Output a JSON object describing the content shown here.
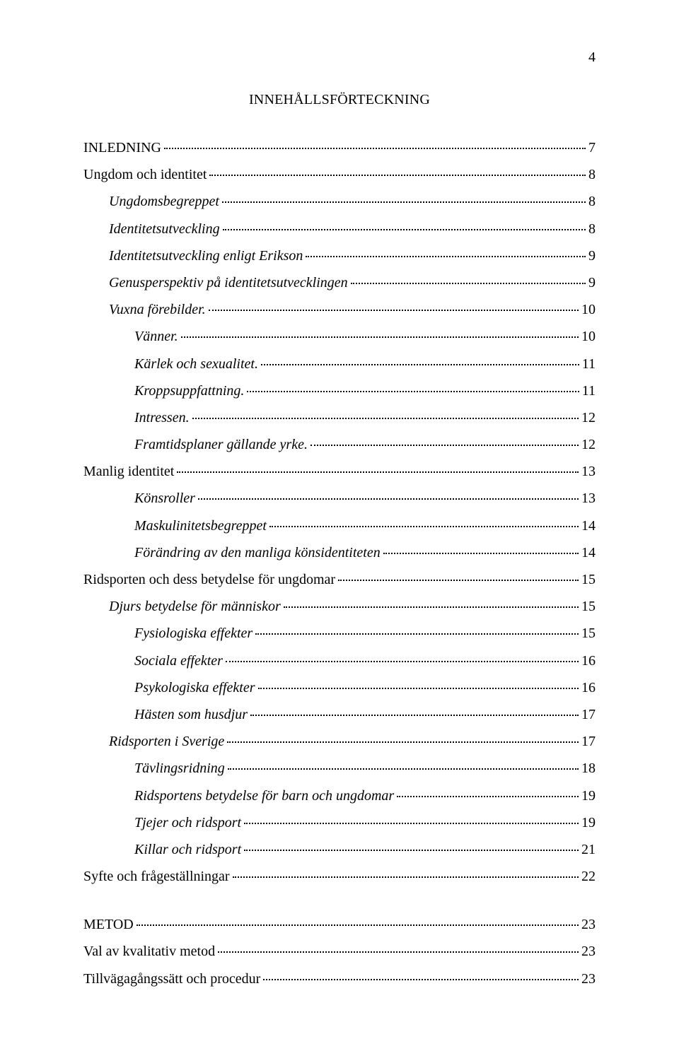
{
  "page_number": "4",
  "title": "INNEHÅLLSFÖRTECKNING",
  "toc": [
    {
      "label": "INLEDNING",
      "page": "7",
      "level": 0,
      "italic": false
    },
    {
      "label": "Ungdom och identitet",
      "page": "8",
      "level": 0,
      "italic": false
    },
    {
      "label": "Ungdomsbegreppet",
      "page": "8",
      "level": 1,
      "italic": true
    },
    {
      "label": "Identitetsutveckling",
      "page": "8",
      "level": 1,
      "italic": true
    },
    {
      "label": "Identitetsutveckling enligt Erikson",
      "page": "9",
      "level": 1,
      "italic": true
    },
    {
      "label": "Genusperspektiv på identitetsutvecklingen",
      "page": "9",
      "level": 1,
      "italic": true
    },
    {
      "label": "Vuxna förebilder.",
      "page": "10",
      "level": 1,
      "italic": true
    },
    {
      "label": "Vänner.",
      "page": "10",
      "level": 2,
      "italic": true
    },
    {
      "label": "Kärlek och sexualitet.",
      "page": "11",
      "level": 2,
      "italic": true
    },
    {
      "label": "Kroppsuppfattning.",
      "page": "11",
      "level": 2,
      "italic": true
    },
    {
      "label": "Intressen.",
      "page": "12",
      "level": 2,
      "italic": true
    },
    {
      "label": "Framtidsplaner gällande yrke.",
      "page": "12",
      "level": 2,
      "italic": true
    },
    {
      "label": "Manlig identitet",
      "page": "13",
      "level": 0,
      "italic": false
    },
    {
      "label": "Könsroller",
      "page": "13",
      "level": 2,
      "italic": true
    },
    {
      "label": "Maskulinitetsbegreppet",
      "page": "14",
      "level": 2,
      "italic": true
    },
    {
      "label": "Förändring av den manliga könsidentiteten",
      "page": "14",
      "level": 2,
      "italic": true
    },
    {
      "label": "Ridsporten och dess betydelse för ungdomar",
      "page": "15",
      "level": 0,
      "italic": false
    },
    {
      "label": "Djurs betydelse för människor",
      "page": "15",
      "level": 1,
      "italic": true
    },
    {
      "label": "Fysiologiska effekter",
      "page": "15",
      "level": 2,
      "italic": true
    },
    {
      "label": "Sociala effekter",
      "page": "16",
      "level": 2,
      "italic": true
    },
    {
      "label": "Psykologiska effekter",
      "page": "16",
      "level": 2,
      "italic": true
    },
    {
      "label": "Hästen som husdjur",
      "page": "17",
      "level": 2,
      "italic": true
    },
    {
      "label": "Ridsporten i Sverige",
      "page": "17",
      "level": 1,
      "italic": true
    },
    {
      "label": "Tävlingsridning",
      "page": "18",
      "level": 2,
      "italic": true
    },
    {
      "label": "Ridsportens betydelse för barn och ungdomar",
      "page": "19",
      "level": 2,
      "italic": true
    },
    {
      "label": "Tjejer och ridsport",
      "page": "19",
      "level": 2,
      "italic": true
    },
    {
      "label": "Killar och ridsport",
      "page": "21",
      "level": 2,
      "italic": true
    },
    {
      "label": "Syfte och frågeställningar",
      "page": "22",
      "level": 0,
      "italic": false
    }
  ],
  "toc2": [
    {
      "label": "METOD",
      "page": "23",
      "level": 0,
      "italic": false
    },
    {
      "label": "Val av kvalitativ metod",
      "page": "23",
      "level": 0,
      "italic": false
    },
    {
      "label": "Tillvägagångssätt och procedur",
      "page": "23",
      "level": 0,
      "italic": false
    }
  ]
}
